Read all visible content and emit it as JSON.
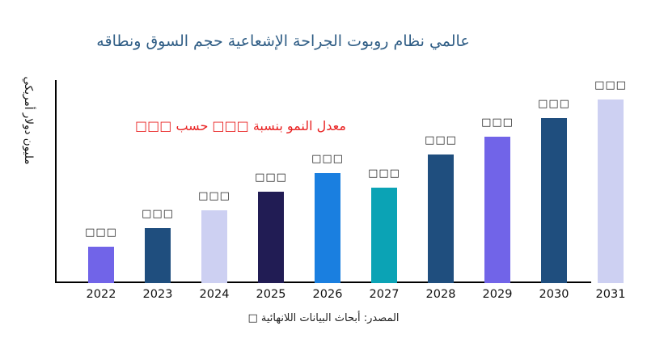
{
  "title": {
    "text": "عالمي نظام روبوت الجراحة الإشعاعية حجم السوق ونطاقه",
    "color": "#2f5d85"
  },
  "y_axis_label": "مليون دولار أمريكي",
  "annotation": {
    "text": "معدل النمو بنسبة □□□ حسب □□□",
    "color": "#e92222"
  },
  "source": {
    "text": "المصدر: أبحاث البيانات اللانهائية □"
  },
  "axes": {
    "color": "#000000"
  },
  "chart_data": {
    "type": "bar",
    "title": "عالمي نظام روبوت الجراحة الإشعاعية حجم السوق ونطاقه",
    "xlabel": "",
    "ylabel": "مليون دولار أمريكي",
    "legend": "none",
    "grid": false,
    "y_tick_labels": "none (axis has no numeric ticks)",
    "categories": [
      "2022",
      "2023",
      "2024",
      "2025",
      "2026",
      "2027",
      "2028",
      "2029",
      "2030",
      "2031"
    ],
    "value_labels": [
      "□□□",
      "□□□",
      "□□□",
      "□□□",
      "□□□",
      "□□□",
      "□□□",
      "□□□",
      "□□□",
      "□□□"
    ],
    "values_note": "numeric data labels are rendered as missing-glyph boxes in the source image; values below are relative bar heights estimated in pixels",
    "values": [
      45,
      68,
      90,
      113,
      136,
      118,
      159,
      181,
      204,
      227
    ],
    "bar_colors": [
      "#7164e8",
      "#1f4e7e",
      "#cdd0f2",
      "#211c54",
      "#1a7fe0",
      "#0ba3b5",
      "#1f4e7e",
      "#7164e8",
      "#1f4e7e",
      "#cdd0f2"
    ]
  }
}
